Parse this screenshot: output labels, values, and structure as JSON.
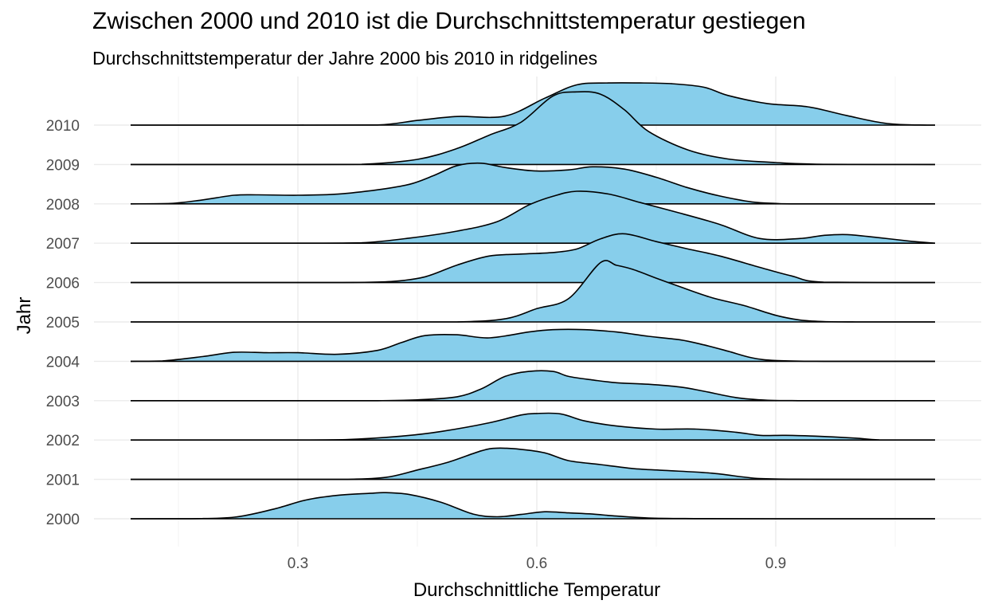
{
  "chart_data": {
    "type": "ridgeline",
    "title": "Zwischen 2000 und 2010 ist die Durchschnittstemperatur gestiegen",
    "subtitle": "Durchschnittstemperatur der Jahre 2000 bis 2010 in ridgelines",
    "xlabel": "Durchschnittliche Temperatur",
    "ylabel": "Jahr",
    "xlim": [
      0.08,
      1.11
    ],
    "x_ticks": [
      0.3,
      0.6,
      0.9
    ],
    "x_tick_labels": [
      "0.3",
      "0.6",
      "0.9"
    ],
    "grid": true,
    "fill_color": "#87CEEB",
    "line_color": "#000000",
    "categories": [
      "2000",
      "2001",
      "2002",
      "2003",
      "2004",
      "2005",
      "2006",
      "2007",
      "2008",
      "2009",
      "2010"
    ],
    "series": [
      {
        "name": "2000",
        "x": [
          0.09,
          0.16,
          0.22,
          0.27,
          0.31,
          0.35,
          0.39,
          0.41,
          0.44,
          0.48,
          0.52,
          0.55,
          0.58,
          0.61,
          0.64,
          0.67,
          0.7,
          0.74,
          0.8,
          0.9,
          1.1
        ],
        "y": [
          0,
          0.002,
          0.04,
          0.25,
          0.48,
          0.6,
          0.65,
          0.67,
          0.62,
          0.42,
          0.12,
          0.05,
          0.11,
          0.18,
          0.15,
          0.12,
          0.07,
          0.02,
          0.005,
          0,
          0
        ]
      },
      {
        "name": "2001",
        "x": [
          0.09,
          0.2,
          0.3,
          0.36,
          0.41,
          0.45,
          0.49,
          0.53,
          0.55,
          0.58,
          0.61,
          0.64,
          0.68,
          0.72,
          0.76,
          0.82,
          0.88,
          0.95,
          1.1
        ],
        "y": [
          0,
          0,
          0,
          0,
          0.05,
          0.24,
          0.45,
          0.73,
          0.8,
          0.77,
          0.68,
          0.48,
          0.38,
          0.28,
          0.23,
          0.16,
          0.02,
          0.004,
          0
        ]
      },
      {
        "name": "2002",
        "x": [
          0.09,
          0.2,
          0.3,
          0.36,
          0.43,
          0.48,
          0.54,
          0.58,
          0.6,
          0.63,
          0.66,
          0.7,
          0.75,
          0.8,
          0.85,
          0.88,
          0.91,
          0.95,
          1,
          1.03,
          1.1
        ],
        "y": [
          0,
          0,
          0,
          0.01,
          0.1,
          0.22,
          0.44,
          0.64,
          0.68,
          0.67,
          0.49,
          0.36,
          0.28,
          0.28,
          0.2,
          0.12,
          0.12,
          0.1,
          0.05,
          0.005,
          0
        ]
      },
      {
        "name": "2003",
        "x": [
          0.09,
          0.3,
          0.4,
          0.45,
          0.5,
          0.53,
          0.56,
          0.59,
          0.62,
          0.64,
          0.67,
          0.7,
          0.74,
          0.78,
          0.81,
          0.85,
          0.89,
          0.92,
          0.96,
          1.1
        ],
        "y": [
          0,
          0,
          0,
          0.02,
          0.1,
          0.3,
          0.62,
          0.75,
          0.75,
          0.62,
          0.53,
          0.46,
          0.42,
          0.35,
          0.24,
          0.08,
          0.01,
          0.002,
          0,
          0
        ]
      },
      {
        "name": "2004",
        "x": [
          0.09,
          0.13,
          0.18,
          0.22,
          0.26,
          0.3,
          0.35,
          0.4,
          0.43,
          0.46,
          0.5,
          0.54,
          0.59,
          0.62,
          0.66,
          0.7,
          0.74,
          0.78,
          0.81,
          0.84,
          0.87,
          0.9,
          0.96,
          1.1
        ],
        "y": [
          0,
          0.01,
          0.12,
          0.23,
          0.22,
          0.22,
          0.18,
          0.28,
          0.48,
          0.66,
          0.68,
          0.6,
          0.75,
          0.81,
          0.81,
          0.75,
          0.64,
          0.55,
          0.42,
          0.26,
          0.09,
          0.02,
          0,
          0
        ]
      },
      {
        "name": "2005",
        "x": [
          0.09,
          0.4,
          0.5,
          0.56,
          0.6,
          0.64,
          0.68,
          0.7,
          0.72,
          0.75,
          0.78,
          0.82,
          0.86,
          0.9,
          0.93,
          0.96,
          1,
          1.1
        ],
        "y": [
          0,
          0,
          0,
          0.08,
          0.34,
          0.6,
          1.52,
          1.45,
          1.35,
          1.12,
          0.9,
          0.62,
          0.42,
          0.17,
          0.05,
          0.01,
          0,
          0
        ]
      },
      {
        "name": "2006",
        "x": [
          0.09,
          0.3,
          0.37,
          0.42,
          0.46,
          0.5,
          0.54,
          0.58,
          0.62,
          0.65,
          0.68,
          0.71,
          0.75,
          0.79,
          0.83,
          0.88,
          0.92,
          0.96,
          1.1
        ],
        "y": [
          0,
          0,
          0.005,
          0.03,
          0.15,
          0.45,
          0.68,
          0.73,
          0.77,
          0.86,
          1.12,
          1.25,
          1.05,
          0.86,
          0.68,
          0.39,
          0.17,
          0.01,
          0
        ]
      },
      {
        "name": "2007",
        "x": [
          0.09,
          0.3,
          0.38,
          0.44,
          0.5,
          0.55,
          0.59,
          0.62,
          0.65,
          0.69,
          0.73,
          0.78,
          0.83,
          0.88,
          0.93,
          0.96,
          0.99,
          1.03,
          1.07,
          1.1
        ],
        "y": [
          0,
          0,
          0.01,
          0.13,
          0.31,
          0.55,
          0.98,
          1.2,
          1.33,
          1.26,
          1.04,
          0.77,
          0.48,
          0.12,
          0.12,
          0.2,
          0.22,
          0.14,
          0.05,
          0
        ]
      },
      {
        "name": "2008",
        "x": [
          0.09,
          0.14,
          0.18,
          0.22,
          0.25,
          0.3,
          0.35,
          0.4,
          0.44,
          0.47,
          0.5,
          0.53,
          0.56,
          0.6,
          0.64,
          0.67,
          0.71,
          0.75,
          0.79,
          0.83,
          0.87,
          0.9,
          0.93,
          1.1
        ],
        "y": [
          0,
          0.01,
          0.1,
          0.22,
          0.23,
          0.22,
          0.25,
          0.36,
          0.5,
          0.72,
          0.98,
          1.04,
          0.93,
          0.84,
          0.87,
          0.95,
          0.89,
          0.68,
          0.41,
          0.2,
          0.05,
          0.01,
          0,
          0
        ]
      },
      {
        "name": "2009",
        "x": [
          0.09,
          0.3,
          0.38,
          0.45,
          0.5,
          0.54,
          0.58,
          0.62,
          0.65,
          0.68,
          0.71,
          0.74,
          0.79,
          0.84,
          0.9,
          0.96,
          1.1
        ],
        "y": [
          0,
          0,
          0.005,
          0.13,
          0.41,
          0.75,
          1.08,
          1.75,
          1.86,
          1.8,
          1.4,
          0.85,
          0.37,
          0.14,
          0.05,
          0.005,
          0
        ]
      },
      {
        "name": "2010",
        "x": [
          0.09,
          0.3,
          0.4,
          0.45,
          0.5,
          0.56,
          0.61,
          0.65,
          0.69,
          0.73,
          0.77,
          0.81,
          0.84,
          0.89,
          0.94,
          0.99,
          1.04,
          1.09,
          1.1
        ],
        "y": [
          0,
          0,
          0.005,
          0.12,
          0.22,
          0.23,
          0.69,
          1.03,
          1.08,
          1.08,
          1.06,
          0.97,
          0.76,
          0.55,
          0.47,
          0.24,
          0.04,
          0,
          0
        ]
      }
    ]
  }
}
